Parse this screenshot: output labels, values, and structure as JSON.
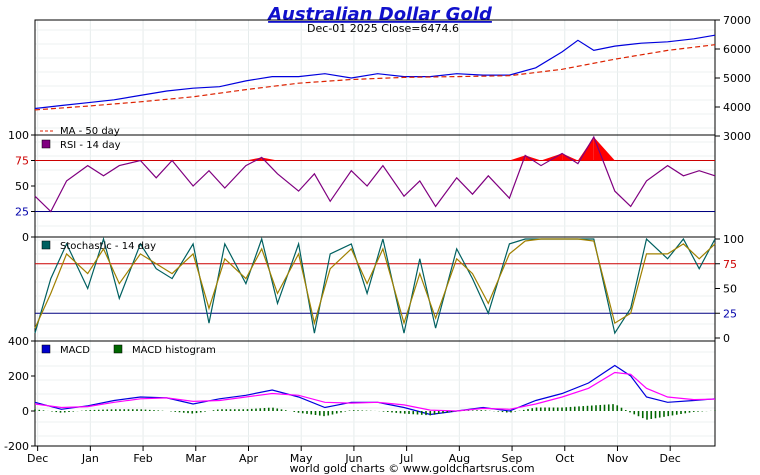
{
  "chart_data": {
    "title": "Australian Dollar Gold",
    "subtitle": "Dec-01  2025  Close=6474.6",
    "footer": "world gold charts © www.goldchartsrus.com",
    "x_labels": [
      "Dec",
      "Jan",
      "Feb",
      "Mar",
      "Apr",
      "May",
      "Jun",
      "Jul",
      "Aug",
      "Sep",
      "Oct",
      "Nov",
      "Dec"
    ],
    "x_month_index": [
      0.5,
      1.5,
      2.5,
      3.5,
      4.5,
      5.5,
      6.5,
      7.5,
      8.5,
      9.5,
      10.5,
      11.5,
      12.5
    ],
    "panels": [
      {
        "id": "price",
        "type": "line",
        "y_ticks_right": [
          "7000",
          "6000",
          "5000",
          "4000",
          "3000"
        ],
        "y_tick_values": [
          7000,
          6000,
          5000,
          4000,
          3000
        ],
        "ylim": [
          3000,
          7000
        ],
        "legend": [
          {
            "label": "MA - 50 day",
            "color": "#dd2200"
          }
        ],
        "series": [
          {
            "name": "Price",
            "color": "#0000dd",
            "x": [
              0,
              0.5,
              1,
              1.5,
              2,
              2.5,
              3,
              3.5,
              4,
              4.5,
              5,
              5.5,
              6,
              6.5,
              7,
              7.5,
              8,
              8.5,
              9,
              9.5,
              10,
              10.3,
              10.6,
              11,
              11.5,
              12,
              12.5,
              12.9
            ],
            "y": [
              3950,
              4050,
              4150,
              4250,
              4400,
              4550,
              4650,
              4700,
              4900,
              5050,
              5050,
              5150,
              5000,
              5150,
              5050,
              5050,
              5150,
              5100,
              5100,
              5350,
              5900,
              6300,
              5950,
              6100,
              6200,
              6250,
              6350,
              6474.6
            ]
          },
          {
            "name": "MA - 50 day",
            "color": "#dd2200",
            "dashed": true,
            "x": [
              0,
              1,
              2,
              3,
              4,
              5,
              6,
              7,
              8,
              9,
              10,
              11,
              12,
              12.9
            ],
            "y": [
              3900,
              4030,
              4180,
              4350,
              4600,
              4820,
              4950,
              5020,
              5050,
              5080,
              5300,
              5650,
              5950,
              6150
            ]
          }
        ]
      },
      {
        "id": "rsi",
        "type": "line",
        "legend": [
          {
            "label": "RSI - 14 day",
            "color": "#800080"
          }
        ],
        "y_ticks_left": [
          "100",
          "75",
          "50",
          "25",
          "0"
        ],
        "y_tick_values": [
          100,
          75,
          50,
          25,
          0
        ],
        "ylim": [
          0,
          100
        ],
        "ref_lines": [
          {
            "value": 75,
            "color": "#cc0000"
          },
          {
            "value": 25,
            "color": "#000080"
          }
        ],
        "series": [
          {
            "name": "RSI - 14 day",
            "color": "#800080",
            "x": [
              0,
              0.3,
              0.6,
              1,
              1.3,
              1.6,
              2,
              2.3,
              2.6,
              3,
              3.3,
              3.6,
              4,
              4.3,
              4.6,
              5,
              5.3,
              5.6,
              6,
              6.3,
              6.6,
              7,
              7.3,
              7.6,
              8,
              8.3,
              8.6,
              9,
              9.3,
              9.6,
              10,
              10.3,
              10.6,
              11,
              11.3,
              11.6,
              12,
              12.3,
              12.6,
              12.9
            ],
            "y": [
              40,
              25,
              55,
              70,
              60,
              70,
              75,
              58,
              75,
              50,
              65,
              48,
              70,
              78,
              62,
              45,
              62,
              35,
              65,
              50,
              70,
              40,
              55,
              30,
              58,
              42,
              60,
              38,
              80,
              70,
              82,
              72,
              98,
              45,
              30,
              55,
              70,
              60,
              65,
              60
            ]
          }
        ]
      },
      {
        "id": "stochastic",
        "type": "line",
        "legend": [
          {
            "label": "Stochastic - 14 day",
            "color": "#006060"
          }
        ],
        "y_ticks_right": [
          "100",
          "75",
          "50",
          "25",
          "0"
        ],
        "y_tick_values": [
          100,
          75,
          50,
          25,
          0
        ],
        "ylim": [
          0,
          100
        ],
        "ref_lines": [
          {
            "value": 75,
            "color": "#cc0000"
          },
          {
            "value": 25,
            "color": "#000080"
          }
        ],
        "series": [
          {
            "name": "%K",
            "color": "#006060",
            "x": [
              0,
              0.3,
              0.6,
              1,
              1.3,
              1.6,
              2,
              2.3,
              2.6,
              3,
              3.3,
              3.6,
              4,
              4.3,
              4.6,
              5,
              5.3,
              5.6,
              6,
              6.3,
              6.6,
              7,
              7.3,
              7.6,
              8,
              8.3,
              8.6,
              9,
              9.3,
              9.6,
              10,
              10.3,
              10.6,
              11,
              11.3,
              11.6,
              12,
              12.3,
              12.6,
              12.9
            ],
            "y": [
              5,
              60,
              95,
              50,
              100,
              40,
              95,
              70,
              60,
              95,
              15,
              95,
              55,
              100,
              35,
              95,
              5,
              85,
              95,
              45,
              100,
              5,
              80,
              10,
              90,
              60,
              25,
              95,
              100,
              100,
              100,
              100,
              100,
              5,
              30,
              100,
              80,
              100,
              70,
              100
            ]
          },
          {
            "name": "%D",
            "color": "#a08000",
            "x": [
              0,
              0.3,
              0.6,
              1,
              1.3,
              1.6,
              2,
              2.3,
              2.6,
              3,
              3.3,
              3.6,
              4,
              4.3,
              4.6,
              5,
              5.3,
              5.6,
              6,
              6.3,
              6.6,
              7,
              7.3,
              7.6,
              8,
              8.3,
              8.6,
              9,
              9.3,
              9.6,
              10,
              10.3,
              10.6,
              11,
              11.3,
              11.6,
              12,
              12.3,
              12.6,
              12.9
            ],
            "y": [
              10,
              45,
              85,
              65,
              90,
              55,
              85,
              75,
              65,
              85,
              30,
              80,
              60,
              90,
              45,
              85,
              15,
              70,
              90,
              55,
              90,
              15,
              65,
              20,
              80,
              65,
              35,
              85,
              98,
              100,
              100,
              100,
              98,
              15,
              25,
              85,
              85,
              95,
              80,
              95
            ]
          }
        ]
      },
      {
        "id": "macd",
        "type": "line",
        "legend": [
          {
            "label": "MACD",
            "color": "#0000cc"
          },
          {
            "label": "MACD histogram",
            "color": "#006600"
          }
        ],
        "y_ticks_left": [
          "400",
          "200",
          "0",
          "-200"
        ],
        "y_tick_values": [
          400,
          200,
          0,
          -200
        ],
        "ylim": [
          -200,
          400
        ],
        "series": [
          {
            "name": "MACD",
            "color": "#0000dd",
            "x": [
              0,
              0.5,
              1,
              1.5,
              2,
              2.5,
              3,
              3.5,
              4,
              4.5,
              5,
              5.5,
              6,
              6.5,
              7,
              7.5,
              8,
              8.5,
              9,
              9.5,
              10,
              10.5,
              11,
              11.3,
              11.6,
              12,
              12.5,
              12.9
            ],
            "y": [
              50,
              10,
              30,
              60,
              80,
              75,
              40,
              70,
              90,
              120,
              80,
              20,
              50,
              50,
              20,
              -20,
              0,
              20,
              0,
              60,
              100,
              160,
              260,
              200,
              80,
              50,
              60,
              70
            ]
          },
          {
            "name": "Signal",
            "color": "#ff00ff",
            "x": [
              0,
              0.5,
              1,
              1.5,
              2,
              2.5,
              3,
              3.5,
              4,
              4.5,
              5,
              5.5,
              6,
              6.5,
              7,
              7.5,
              8,
              8.5,
              9,
              9.5,
              10,
              10.5,
              11,
              11.3,
              11.6,
              12,
              12.5,
              12.9
            ],
            "y": [
              40,
              20,
              25,
              50,
              70,
              75,
              55,
              60,
              80,
              100,
              90,
              50,
              45,
              50,
              35,
              5,
              0,
              15,
              10,
              40,
              80,
              130,
              220,
              210,
              130,
              80,
              65,
              68
            ]
          },
          {
            "name": "MACD histogram",
            "color": "#006600",
            "type": "bar",
            "x": [
              0,
              0.5,
              1,
              1.5,
              2,
              2.5,
              3,
              3.5,
              4,
              4.5,
              5,
              5.5,
              6,
              6.5,
              7,
              7.5,
              8,
              8.5,
              9,
              9.5,
              10,
              10.5,
              11,
              11.3,
              11.6,
              12,
              12.5,
              12.9
            ],
            "y": [
              10,
              -10,
              5,
              10,
              10,
              0,
              -15,
              10,
              10,
              20,
              -10,
              -30,
              5,
              0,
              -15,
              -25,
              0,
              5,
              -10,
              20,
              20,
              30,
              40,
              -10,
              -50,
              -30,
              -5,
              2
            ]
          }
        ]
      }
    ]
  }
}
